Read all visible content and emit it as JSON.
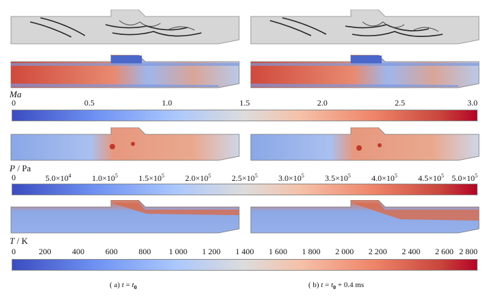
{
  "colorbars": {
    "ma": {
      "title": "Ma",
      "unit": "",
      "ticks": [
        "0",
        "0.5",
        "1.0",
        "1.5",
        "2.0",
        "2.5",
        "3.0"
      ]
    },
    "p": {
      "title": "P",
      "unit": " / Pa",
      "ticks": [
        "0",
        "5.0×10",
        "1.0×10",
        "1.5×10",
        "2.0×10",
        "2.5×10",
        "3.0×10",
        "3.5×10",
        "4.0×10",
        "4.5×10",
        "5.0×10"
      ],
      "exponents": [
        "",
        "4",
        "5",
        "5",
        "5",
        "5",
        "5",
        "5",
        "5",
        "5",
        "5"
      ]
    },
    "t": {
      "title": "T",
      "unit": " / K",
      "ticks": [
        "0",
        "200",
        "400",
        "600",
        "800",
        "1 000",
        "1 200",
        "1 400",
        "1 600",
        "1 800",
        "2 000",
        "2 200",
        "2 400",
        "2 600",
        "2 800"
      ]
    }
  },
  "captions": {
    "a": {
      "prefix": "( a)  ",
      "var": "t",
      "eq": " = ",
      "rhs_var": "t",
      "rhs_sub": "0",
      "suffix": ""
    },
    "b": {
      "prefix": "( b)  ",
      "var": "t",
      "eq": " = ",
      "rhs_var": "t",
      "rhs_sub": "0",
      "suffix": " + 0.4 ms"
    }
  }
}
